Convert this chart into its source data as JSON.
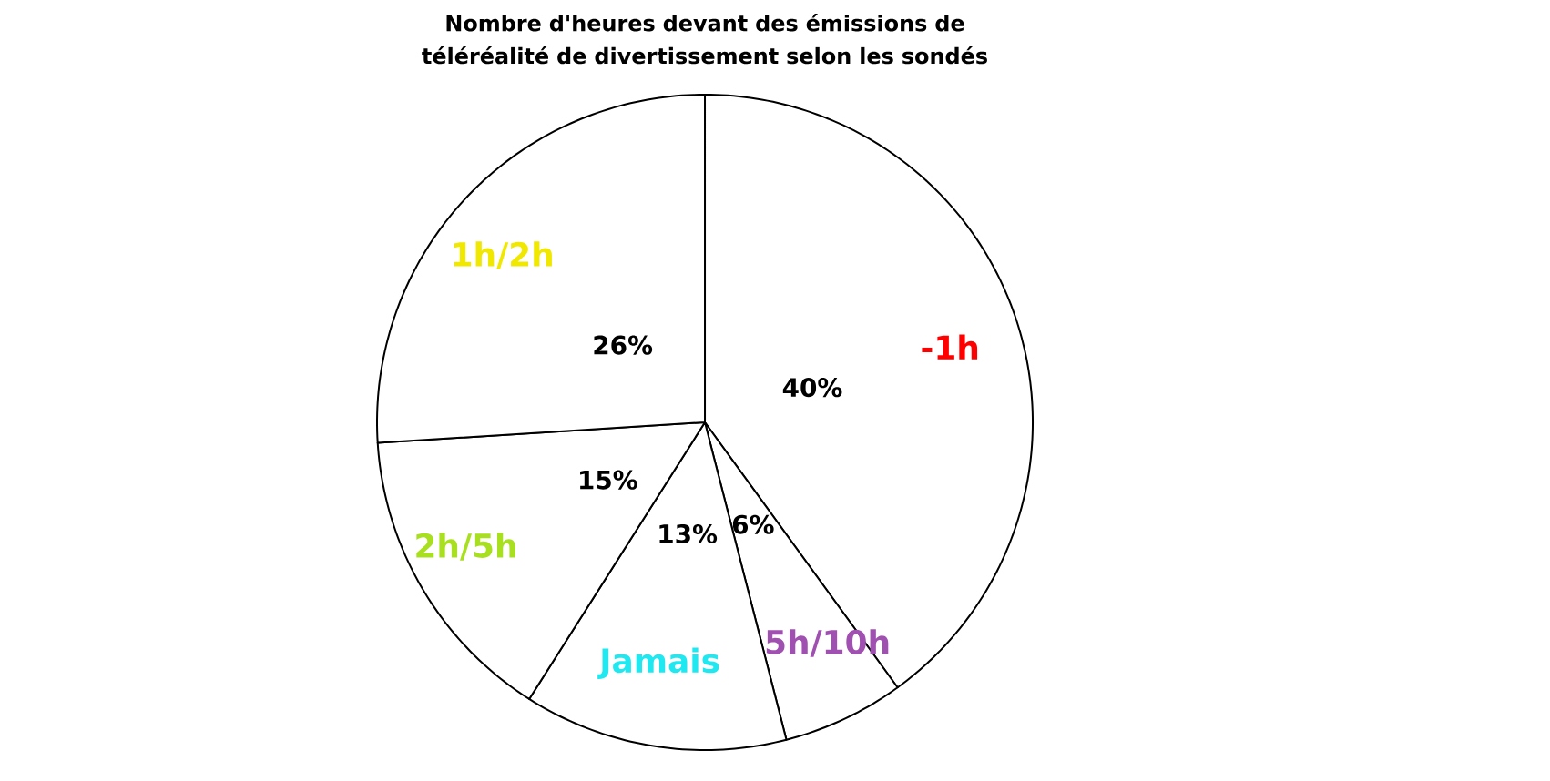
{
  "chart_data": {
    "type": "pie",
    "title": "Nombre d'heures devant des émissions de téléréalité de divertissement selon les sondés",
    "categories": [
      "-1h",
      "5h/10h",
      "Jamais",
      "2h/5h",
      "1h/2h"
    ],
    "values": [
      40,
      6,
      13,
      15,
      26
    ],
    "colors": [
      "#ffffff",
      "#ffffff",
      "#ffffff",
      "#ffffff",
      "#ffffff"
    ],
    "value_labels": [
      "40%",
      "6%",
      "13%",
      "15%",
      "26%"
    ]
  }
}
